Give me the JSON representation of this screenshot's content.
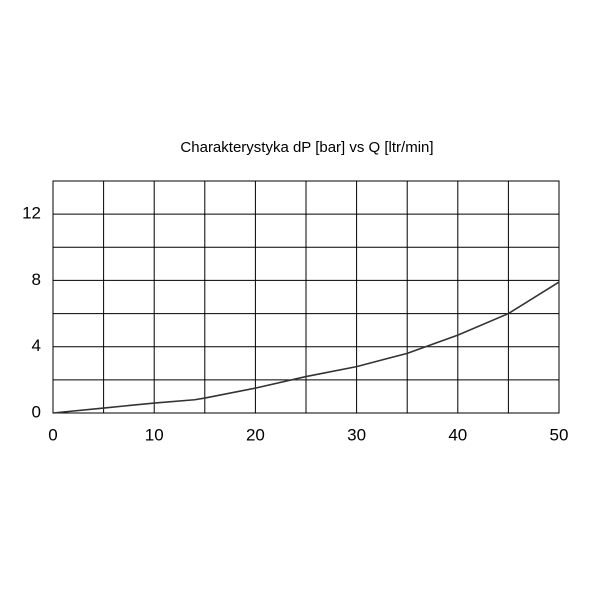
{
  "chart_data": {
    "type": "line",
    "title": "Charakterystyka dP [bar] vs Q [ltr/min]",
    "x": [
      0,
      5,
      10,
      14,
      15,
      20,
      25,
      30,
      35,
      40,
      45,
      50
    ],
    "values": [
      0,
      0.3,
      0.6,
      0.8,
      0.9,
      1.5,
      2.2,
      2.8,
      3.6,
      4.7,
      6.0,
      7.9
    ],
    "color": "#333333",
    "xlim": [
      0,
      50
    ],
    "xticks": [
      0,
      10,
      20,
      30,
      40,
      50
    ],
    "ylim": [
      0,
      14
    ],
    "yticks": [
      0,
      4,
      8,
      12
    ],
    "xgrid": [
      0,
      5,
      10,
      15,
      20,
      25,
      30,
      35,
      40,
      45,
      50
    ],
    "ygrid": [
      0,
      2,
      4,
      6,
      8,
      10,
      12,
      14
    ],
    "grid": true
  }
}
